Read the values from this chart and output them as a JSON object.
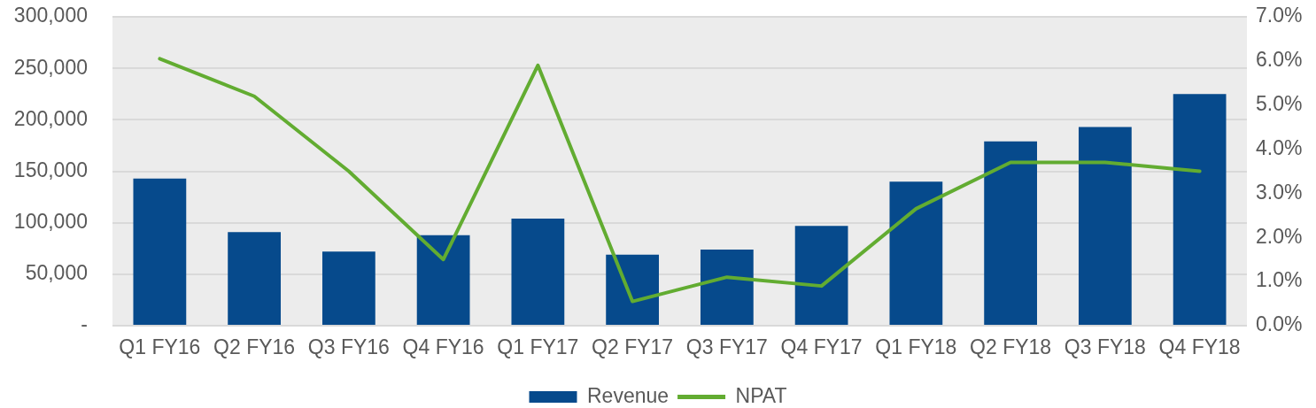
{
  "chart_data": {
    "type": "bar",
    "categories": [
      "Q1 FY16",
      "Q2 FY16",
      "Q3 FY16",
      "Q4 FY16",
      "Q1 FY17",
      "Q2 FY17",
      "Q3 FY17",
      "Q4 FY17",
      "Q1 FY18",
      "Q2 FY18",
      "Q3 FY18",
      "Q4 FY18"
    ],
    "series": [
      {
        "name": "Revenue",
        "color": "#064a8c",
        "values": [
          143000,
          91000,
          72000,
          88000,
          104000,
          69000,
          74000,
          97000,
          140000,
          179000,
          193000,
          225000
        ]
      },
      {
        "name": "NPAT",
        "type": "line",
        "axis": "y2",
        "color": "#62ac31",
        "values": [
          6.05,
          5.2,
          3.5,
          1.5,
          5.9,
          0.55,
          1.1,
          0.9,
          2.65,
          3.7,
          3.7,
          3.5
        ]
      }
    ],
    "ylim": [
      0,
      300000
    ],
    "yticks": [
      {
        "value": 0,
        "label": "-"
      },
      {
        "value": 50000,
        "label": "50,000"
      },
      {
        "value": 100000,
        "label": "100,000"
      },
      {
        "value": 150000,
        "label": "150,000"
      },
      {
        "value": 200000,
        "label": "200,000"
      },
      {
        "value": 250000,
        "label": "250,000"
      },
      {
        "value": 300000,
        "label": "300,000"
      }
    ],
    "y2lim": [
      0,
      7
    ],
    "y2ticks": [
      {
        "value": 0,
        "label": "0.0%"
      },
      {
        "value": 1,
        "label": "1.0%"
      },
      {
        "value": 2,
        "label": "2.0%"
      },
      {
        "value": 3,
        "label": "3.0%"
      },
      {
        "value": 4,
        "label": "4.0%"
      },
      {
        "value": 5,
        "label": "5.0%"
      },
      {
        "value": 6,
        "label": "6.0%"
      },
      {
        "value": 7,
        "label": "7.0%"
      }
    ],
    "grid": "y",
    "legend": "bottom",
    "marker": "none",
    "line_style": "solid"
  }
}
